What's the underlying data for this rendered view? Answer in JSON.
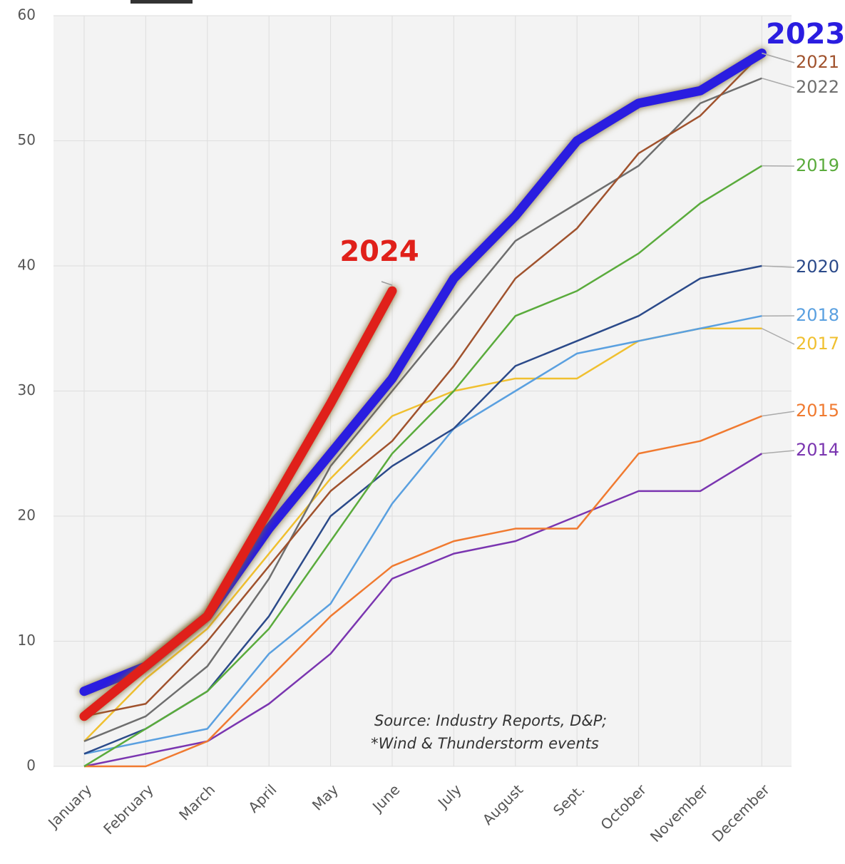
{
  "chart_data": {
    "type": "line",
    "categories": [
      "January",
      "February",
      "March",
      "April",
      "May",
      "June",
      "July",
      "August",
      "Sept.",
      "October",
      "November",
      "December"
    ],
    "series": [
      {
        "name": "2024",
        "color": "#e0201a",
        "values": [
          4,
          8,
          12,
          20.5,
          29,
          38,
          null,
          null,
          null,
          null,
          null,
          null
        ]
      },
      {
        "name": "2023",
        "color": "#2a1de0",
        "values": [
          6,
          8,
          12,
          19,
          25,
          31,
          39,
          44,
          50,
          53,
          54,
          57
        ]
      },
      {
        "name": "2021",
        "color": "#a0522d",
        "values": [
          4,
          5,
          10,
          16,
          22,
          26,
          32,
          39,
          43,
          49,
          52,
          57
        ]
      },
      {
        "name": "2022",
        "color": "#6e6e6e",
        "values": [
          2,
          4,
          8,
          15,
          24,
          30,
          36,
          42,
          45,
          48,
          53,
          55
        ]
      },
      {
        "name": "2019",
        "color": "#5aab3c",
        "values": [
          0,
          3,
          6,
          11,
          18,
          25,
          30,
          36,
          38,
          41,
          45,
          48
        ]
      },
      {
        "name": "2020",
        "color": "#2b4a8a",
        "values": [
          1,
          3,
          6,
          12,
          20,
          24,
          27,
          32,
          34,
          36,
          39,
          40
        ]
      },
      {
        "name": "2018",
        "color": "#5aa0e0",
        "values": [
          1,
          2,
          3,
          9,
          13,
          21,
          27,
          30,
          33,
          34,
          35,
          36
        ]
      },
      {
        "name": "2017",
        "color": "#f0c030",
        "values": [
          2,
          7,
          11,
          17,
          23,
          28,
          30,
          31,
          31,
          34,
          35,
          35
        ]
      },
      {
        "name": "2015",
        "color": "#f07a30",
        "values": [
          0,
          0,
          2,
          7,
          12,
          16,
          18,
          19,
          19,
          25,
          26,
          28
        ]
      },
      {
        "name": "2014",
        "color": "#7a35b0",
        "values": [
          0,
          1,
          2,
          5,
          9,
          15,
          17,
          18,
          20,
          22,
          22,
          25
        ]
      }
    ],
    "ylim": [
      0,
      60
    ],
    "yticks": [
      0,
      10,
      20,
      30,
      40,
      50,
      60
    ],
    "grid": true,
    "annotations": [
      "Source: Industry Reports, D&P;",
      "*Wind & Thunderstorm events"
    ]
  }
}
